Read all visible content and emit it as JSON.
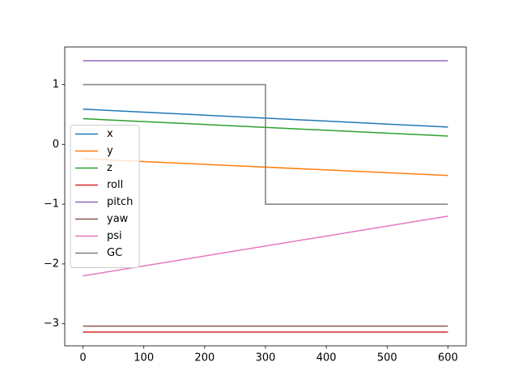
{
  "chart_data": {
    "type": "line",
    "xlim": [
      -30,
      630
    ],
    "xticks": [
      0,
      100,
      200,
      300,
      400,
      500,
      600
    ],
    "ylim": [
      -3.37,
      1.63
    ],
    "yticks": [
      {
        "value": -3,
        "label": "−3"
      },
      {
        "value": -2,
        "label": "−2"
      },
      {
        "value": -1,
        "label": "−1"
      },
      0,
      1
    ],
    "legend": "center left",
    "series": [
      {
        "name": "x",
        "color": "#1f77b4",
        "x": [
          0,
          600
        ],
        "values": [
          0.59,
          0.29
        ]
      },
      {
        "name": "y",
        "color": "#ff7f0e",
        "x": [
          0,
          600
        ],
        "values": [
          -0.24,
          -0.52
        ]
      },
      {
        "name": "z",
        "color": "#2ca02c",
        "x": [
          0,
          600
        ],
        "values": [
          0.43,
          0.14
        ]
      },
      {
        "name": "roll",
        "color": "#d62728",
        "x": [
          0,
          600
        ],
        "values": [
          -3.14,
          -3.14
        ]
      },
      {
        "name": "pitch",
        "color": "#9467bd",
        "x": [
          0,
          600
        ],
        "values": [
          1.4,
          1.4
        ]
      },
      {
        "name": "yaw",
        "color": "#8c564b",
        "x": [
          0,
          600
        ],
        "values": [
          -3.04,
          -3.04
        ]
      },
      {
        "name": "psi",
        "color": "#e377c2",
        "x": [
          0,
          600
        ],
        "values": [
          -2.2,
          -1.2
        ]
      },
      {
        "name": "GC",
        "color": "#7f7f7f",
        "x": [
          0,
          300,
          300,
          600
        ],
        "values": [
          1,
          1,
          -1,
          -1
        ]
      }
    ]
  }
}
